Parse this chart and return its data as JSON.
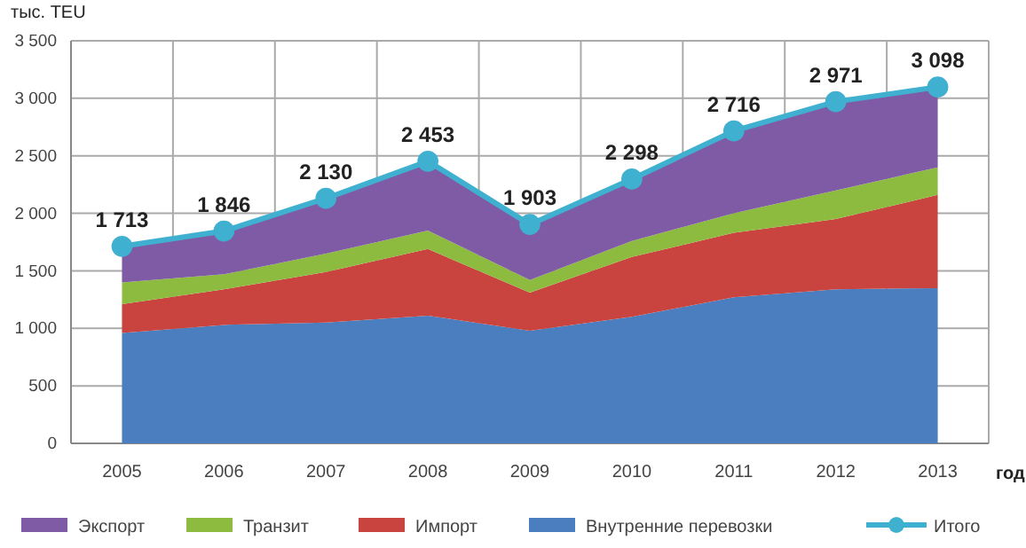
{
  "chart_data": {
    "type": "area",
    "stacked": true,
    "ylabel": "тыс. TEU",
    "xlabel": "год",
    "categories": [
      "2005",
      "2006",
      "2007",
      "2008",
      "2009",
      "2010",
      "2011",
      "2012",
      "2013"
    ],
    "ylim": [
      0,
      3500
    ],
    "yticks": [
      0,
      500,
      {
        "value": 1000,
        "label": "1 000"
      },
      {
        "value": 1500,
        "label": "1 500"
      },
      {
        "value": 2000,
        "label": "2 000"
      },
      {
        "value": 2500,
        "label": "2 500"
      },
      {
        "value": 3000,
        "label": "3 000"
      },
      {
        "value": 3500,
        "label": "3 500"
      }
    ],
    "grid": true,
    "legend": "bottom",
    "series": [
      {
        "name": "Внутренние перевозки",
        "color": "#4a7ebf",
        "values": [
          960,
          1030,
          1050,
          1110,
          980,
          1100,
          1270,
          1340,
          1350
        ]
      },
      {
        "name": "Импорт",
        "color": "#c9433f",
        "values": [
          250,
          310,
          440,
          580,
          330,
          520,
          560,
          610,
          810
        ]
      },
      {
        "name": "Транзит",
        "color": "#8dbb3f",
        "values": [
          190,
          130,
          160,
          160,
          110,
          140,
          170,
          250,
          240
        ]
      },
      {
        "name": "Экспорт",
        "color": "#7f5ba6",
        "values": [
          310,
          380,
          480,
          600,
          480,
          540,
          720,
          770,
          700
        ]
      },
      {
        "name": "Итого",
        "type": "line",
        "marker": "circle",
        "color": "#3fb0cf",
        "values": [
          1713,
          1846,
          2130,
          2453,
          1903,
          2298,
          2716,
          2971,
          3098
        ],
        "value_labels": [
          "1 713",
          "1 846",
          "2 130",
          "2 453",
          "1 903",
          "2 298",
          "2 716",
          "2 971",
          "3 098"
        ]
      }
    ]
  }
}
